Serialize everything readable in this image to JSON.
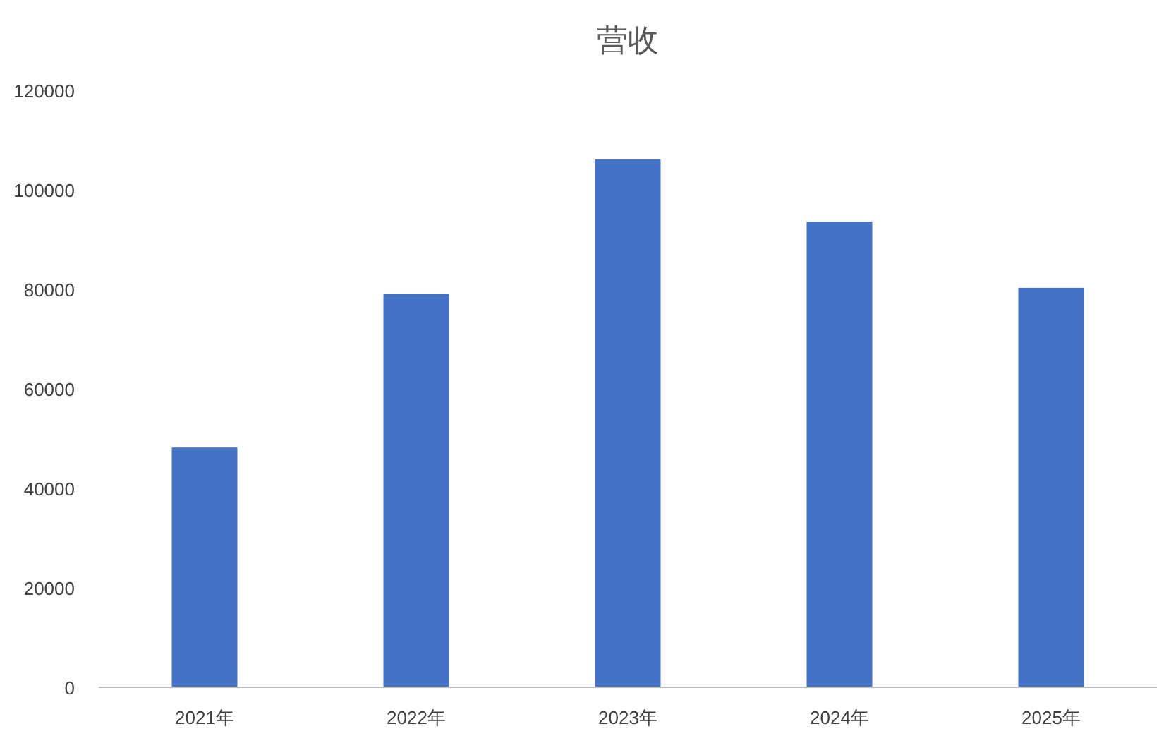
{
  "chart_data": {
    "type": "bar",
    "title": "营收",
    "categories": [
      "2021年",
      "2022年",
      "2023年",
      "2024年",
      "2025年"
    ],
    "values": [
      48200,
      79100,
      106100,
      93600,
      80300
    ],
    "color": "#4472c4",
    "ylim": [
      0,
      120000
    ],
    "yticks": [
      0,
      20000,
      40000,
      60000,
      80000,
      100000,
      120000
    ],
    "grid": false
  }
}
